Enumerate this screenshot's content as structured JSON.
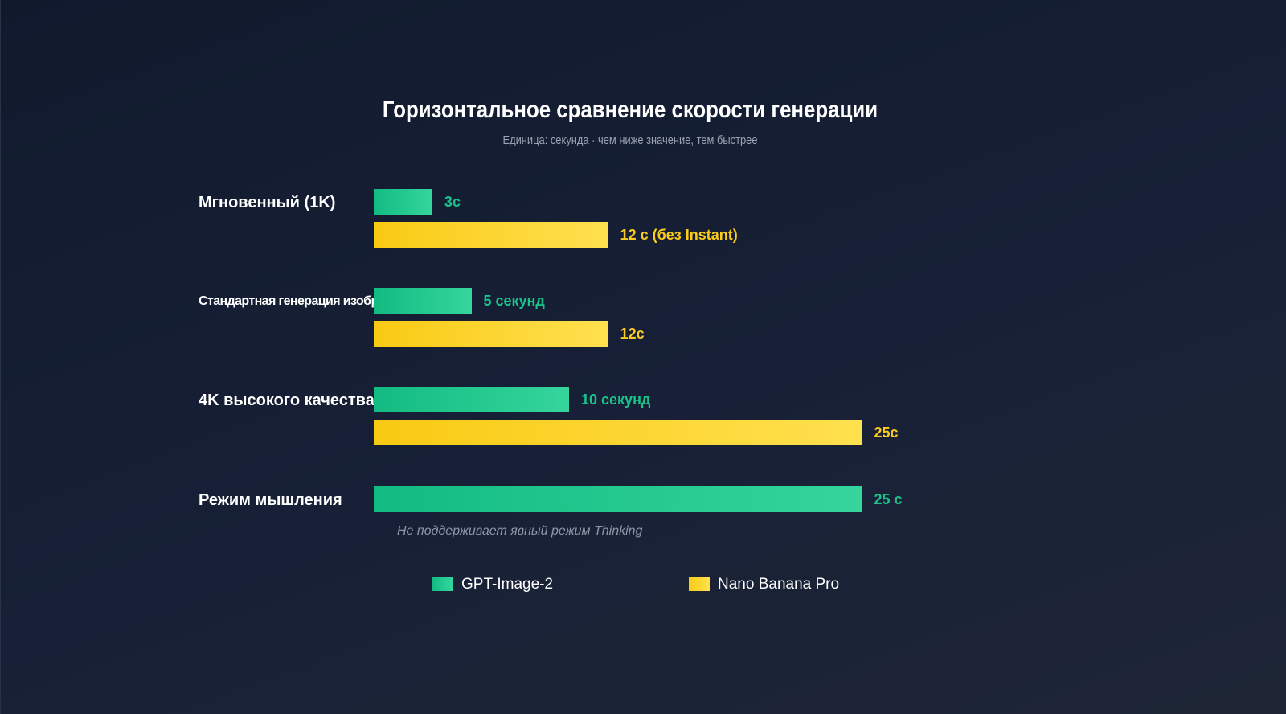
{
  "chart_data": {
    "type": "bar",
    "orientation": "horizontal",
    "title": "Горизонтальное сравнение скорости генерации",
    "subtitle": "Единица: секунда · чем ниже значение, тем быстрее",
    "categories": [
      "Мгновенный (1K)",
      "Стандартная генерация изображений",
      "4K высокого качества",
      "Режим мышления"
    ],
    "series": [
      {
        "name": "GPT-Image-2",
        "color": "#1fc98f",
        "values": [
          3,
          5,
          10,
          25
        ],
        "labels": [
          "3с",
          "5 секунд",
          "10 секунд",
          "25 с"
        ]
      },
      {
        "name": "Nano Banana Pro",
        "color": "#fcd227",
        "values": [
          12,
          12,
          25,
          null
        ],
        "labels": [
          "12 с (без Instant)",
          "12с",
          "25с",
          null
        ]
      }
    ],
    "annotations": [
      "Не поддерживает явный режим Thinking"
    ],
    "legend_position": "bottom",
    "grid": false,
    "xlim": [
      0,
      25
    ]
  }
}
